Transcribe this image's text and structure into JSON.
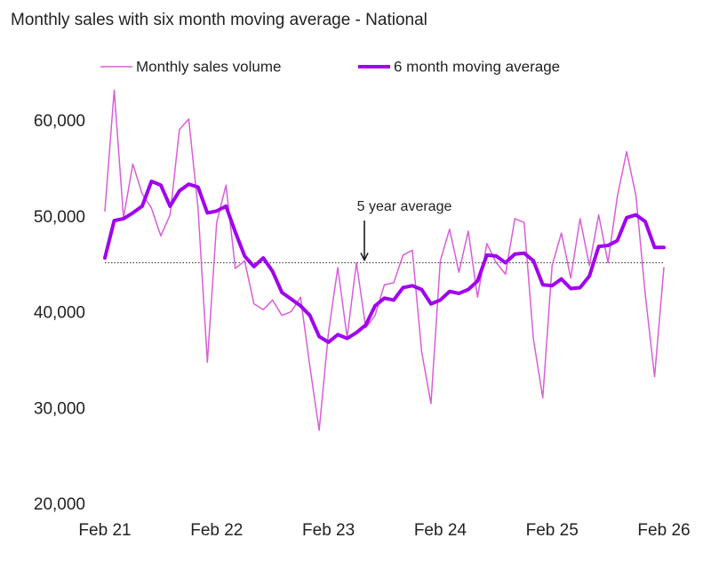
{
  "chart_data": {
    "type": "line",
    "title": "Monthly sales with six month moving average - National",
    "categories": [
      "Feb 21",
      null,
      null,
      null,
      null,
      null,
      null,
      null,
      null,
      null,
      null,
      null,
      "Feb 22",
      null,
      null,
      null,
      null,
      null,
      null,
      null,
      null,
      null,
      null,
      null,
      "Feb 23",
      null,
      null,
      null,
      null,
      null,
      null,
      null,
      null,
      null,
      null,
      null,
      "Feb 24",
      null,
      null,
      null,
      null,
      null,
      null,
      null,
      null,
      null,
      null,
      null,
      "Feb 25",
      null,
      null,
      null,
      null,
      null,
      null,
      null,
      null,
      null,
      null,
      null,
      "Feb 26"
    ],
    "series": [
      {
        "name": "Monthly sales volume",
        "color": "#d85ed8",
        "width": 1.5,
        "values": [
          50700,
          63300,
          50000,
          55600,
          52500,
          51000,
          48100,
          50300,
          59200,
          60300,
          51000,
          34900,
          49500,
          53400,
          44700,
          45500,
          41000,
          40400,
          41400,
          39800,
          40200,
          41700,
          34500,
          27800,
          38000,
          44800,
          37500,
          45300,
          38500,
          39800,
          43000,
          43200,
          46100,
          46600,
          36000,
          30600,
          45500,
          48800,
          44300,
          48600,
          41700,
          47300,
          45300,
          44100,
          49900,
          49500,
          37300,
          31200,
          45000,
          48400,
          43700,
          49900,
          45000,
          50300,
          45300,
          52200,
          56900,
          52300,
          42000,
          33400,
          44800
        ]
      },
      {
        "name": "6 month moving average",
        "color": "#a000f0",
        "width": 4,
        "values": [
          45800,
          49700,
          49900,
          50500,
          51200,
          53800,
          53400,
          51200,
          52800,
          53500,
          53200,
          50500,
          50700,
          51200,
          48500,
          46000,
          44900,
          45800,
          44400,
          42200,
          41500,
          40800,
          39800,
          37600,
          37000,
          37800,
          37400,
          38000,
          38800,
          40800,
          41600,
          41400,
          42700,
          42900,
          42500,
          41000,
          41400,
          42300,
          42100,
          42500,
          43400,
          46100,
          46000,
          45300,
          46200,
          46300,
          45500,
          43000,
          42900,
          43600,
          42600,
          42700,
          43900,
          47000,
          47100,
          47600,
          50000,
          50300,
          49600,
          46900,
          46900
        ]
      }
    ],
    "reference_line": {
      "value": 45300,
      "label": "5 year average"
    },
    "ylim": [
      20000,
      64000
    ],
    "yticks": [
      {
        "value": 20000,
        "label": "20,000"
      },
      {
        "value": 30000,
        "label": "30,000"
      },
      {
        "value": 40000,
        "label": "40,000"
      },
      {
        "value": 50000,
        "label": "50,000"
      },
      {
        "value": 60000,
        "label": "60,000"
      }
    ],
    "grid": false
  }
}
